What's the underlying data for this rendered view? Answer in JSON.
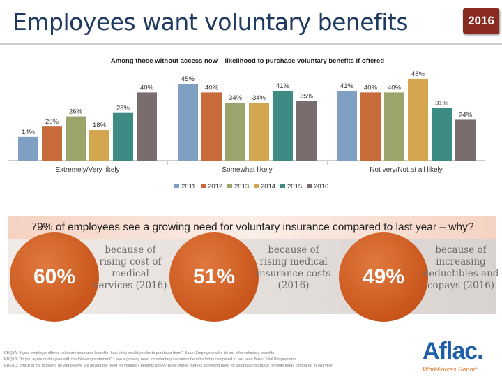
{
  "header": {
    "title": "Employees want voluntary benefits",
    "year_badge": "2016"
  },
  "chart_data": {
    "type": "bar",
    "title": "Among those without access now – likelihood to purchase voluntary benefits if offered",
    "categories": [
      "Extremely/Very likely",
      "Somewhat likely",
      "Not very/Not at all likely"
    ],
    "series": [
      {
        "name": "2011",
        "values": [
          14,
          45,
          41
        ],
        "labels": [
          "14%",
          "45%",
          "41%"
        ],
        "color": "#7f9fc3"
      },
      {
        "name": "2012",
        "values": [
          20,
          40,
          40
        ],
        "labels": [
          "20%",
          "40%",
          "40%"
        ],
        "color": "#c76b3b"
      },
      {
        "name": "2013",
        "values": [
          26,
          34,
          40
        ],
        "labels": [
          "26%",
          "34%",
          "40%"
        ],
        "color": "#9ba46b"
      },
      {
        "name": "2014",
        "values": [
          18,
          34,
          48
        ],
        "labels": [
          "18%",
          "34%",
          "48%"
        ],
        "color": "#d3a54e"
      },
      {
        "name": "2015",
        "values": [
          28,
          41,
          31
        ],
        "labels": [
          "28%",
          "41%",
          "31%"
        ],
        "color": "#3c8c83"
      },
      {
        "name": "2016",
        "values": [
          40,
          35,
          24
        ],
        "labels": [
          "40%",
          "35%",
          "24%"
        ],
        "color": "#7b6d6d"
      }
    ],
    "ylim": [
      0,
      50
    ],
    "legend_position": "bottom",
    "grid": false
  },
  "banner": {
    "text": "79% of employees see a growing need for voluntary insurance compared to last year – why?"
  },
  "reasons": [
    {
      "percent": "60%",
      "text": "because of rising cost of medical services (2016)"
    },
    {
      "percent": "51%",
      "text": "because of rising medical insurance costs (2016)"
    },
    {
      "percent": "49%",
      "text": "because of increasing deductibles and copays (2016)"
    }
  ],
  "footnotes": [
    "EBQ1A: If your employer offered voluntary insurance benefits, how likely would you be to purchase them? Base: Employees who do not offer voluntary benefits",
    "EBQ1B: Do you agree or disagree with the following statement? I see a growing need for voluntary insurance benefits today compared to last year. Base: Total Respondents",
    "EBQ1C: Which of the following do you believe are driving the need for voluntary benefits today? Base: Agree there is a growing need for voluntary insurance benefits today compared to last year"
  ],
  "logo": {
    "name": "Aflac.",
    "subtitle": "WorkForces Report"
  }
}
